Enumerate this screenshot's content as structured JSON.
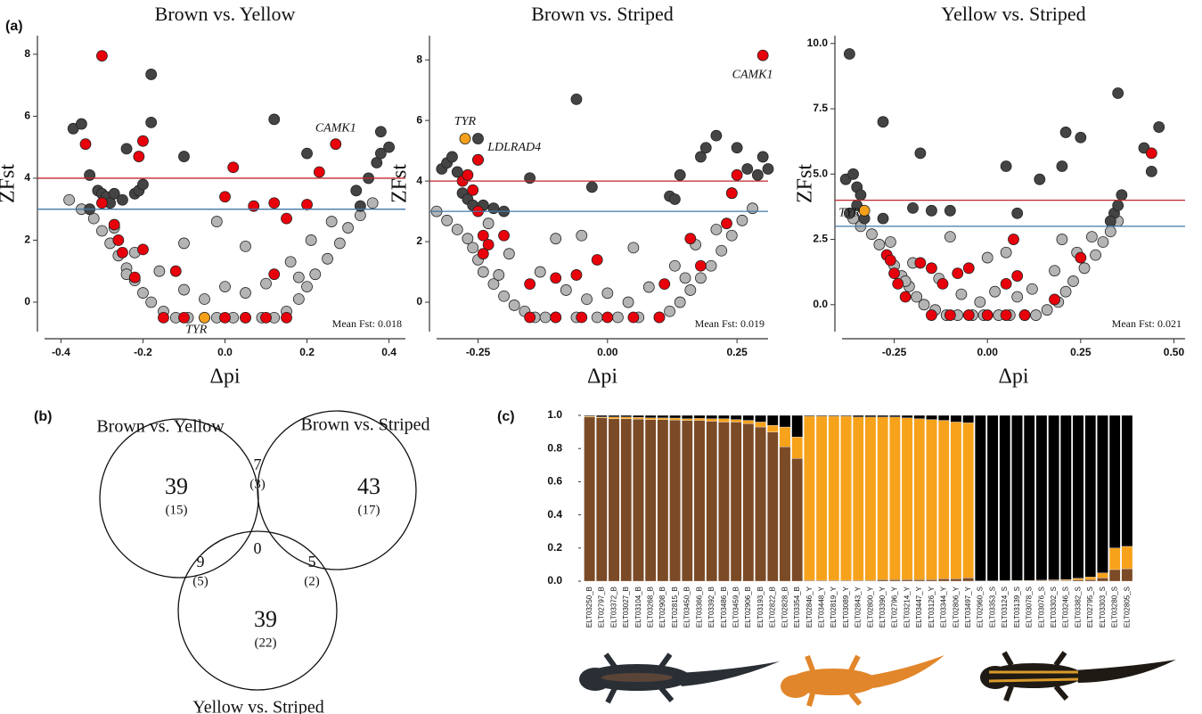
{
  "chart_data": [
    {
      "type": "scatter",
      "panel_label": "(a)",
      "title": "Brown vs. Yellow",
      "x_label": "Δpi",
      "y_label": "ZFst",
      "xlim": [
        -0.44,
        0.44
      ],
      "ylim": [
        -0.95,
        8.6
      ],
      "xticks": [
        -0.4,
        -0.2,
        {
          "value": 0,
          "label": "0.0"
        },
        0.2,
        0.4
      ],
      "yticks": [
        0,
        2,
        4,
        6,
        8
      ],
      "hlines": [
        {
          "value": 4,
          "color": "#c0272d"
        },
        {
          "value": 3,
          "color": "#3f78a8"
        }
      ],
      "series": [
        {
          "color": "#b4b4b4",
          "x": [
            -0.38,
            -0.35,
            -0.32,
            -0.3,
            -0.28,
            -0.26,
            -0.24,
            -0.22,
            -0.2,
            -0.18,
            -0.15,
            -0.12,
            -0.09,
            -0.05,
            -0.02,
            0.02,
            0.05,
            0.09,
            0.12,
            0.15,
            0.18,
            0.2,
            0.22,
            0.25,
            0.28,
            0.3,
            0.33,
            0.36,
            -0.27,
            -0.22,
            -0.16,
            -0.1,
            -0.05,
            0.0,
            0.05,
            0.1,
            0.16,
            0.21,
            0.26,
            -0.1,
            0.05,
            -0.02,
            0.18,
            -0.24
          ],
          "values": [
            3.3,
            3.0,
            2.7,
            2.3,
            1.9,
            1.5,
            1.1,
            0.7,
            0.3,
            0.0,
            -0.3,
            -0.5,
            -0.5,
            -0.5,
            -0.5,
            -0.5,
            -0.5,
            -0.5,
            -0.5,
            -0.3,
            0.1,
            0.5,
            0.9,
            1.4,
            1.9,
            2.4,
            2.8,
            3.2,
            2.4,
            1.6,
            1.0,
            0.4,
            0.1,
            0.5,
            0.3,
            0.6,
            1.3,
            2.0,
            2.6,
            1.9,
            1.8,
            2.6,
            0.8,
            0.9
          ]
        },
        {
          "color": "#444444",
          "x": [
            -0.37,
            -0.35,
            -0.33,
            -0.31,
            -0.3,
            -0.29,
            -0.28,
            -0.27,
            -0.25,
            -0.22,
            -0.21,
            -0.2,
            -0.18,
            -0.18,
            -0.24,
            -0.1,
            0.12,
            0.2,
            0.32,
            0.35,
            0.37,
            0.38,
            0.38,
            0.4,
            0.33,
            -0.33
          ],
          "values": [
            5.6,
            5.75,
            4.1,
            3.6,
            3.5,
            3.4,
            3.2,
            3.5,
            3.3,
            3.5,
            3.6,
            3.8,
            7.35,
            5.8,
            4.95,
            4.7,
            5.9,
            4.8,
            3.6,
            4.0,
            4.5,
            4.8,
            5.5,
            5.0,
            3.1,
            3.0
          ]
        },
        {
          "color": "#e8000b",
          "x": [
            -0.3,
            -0.34,
            -0.21,
            -0.2,
            0.02,
            0.0,
            0.07,
            0.12,
            0.2,
            0.23,
            0.27,
            0.15,
            -0.27,
            -0.26,
            -0.25,
            -0.22,
            -0.2,
            -0.12,
            0.12,
            -0.15,
            -0.1,
            0.0,
            0.05,
            0.1,
            0.15,
            -0.3
          ],
          "values": [
            7.95,
            5.1,
            4.7,
            5.2,
            4.35,
            3.4,
            3.1,
            3.2,
            3.15,
            4.2,
            5.1,
            2.7,
            2.5,
            2.0,
            1.6,
            0.8,
            1.7,
            1.0,
            0.9,
            -0.5,
            -0.5,
            -0.5,
            -0.5,
            -0.5,
            -0.5,
            3.2
          ]
        },
        {
          "color": "#f5a01a",
          "x": [
            -0.05
          ],
          "values": [
            -0.5
          ]
        }
      ],
      "annotations": [
        {
          "text": "CAMK1",
          "x": 0.27,
          "y": 5.6
        },
        {
          "text": "TYR",
          "x": -0.07,
          "y": -0.9
        }
      ],
      "note": "Mean Fst: 0.018"
    },
    {
      "type": "scatter",
      "title": "Brown vs. Striped",
      "x_label": "Δpi",
      "y_label": "ZFst",
      "xlim": [
        -0.33,
        0.31
      ],
      "ylim": [
        -0.97,
        8.8
      ],
      "xticks": [
        -0.25,
        {
          "value": 0,
          "label": "0.00"
        },
        0.25
      ],
      "yticks": [
        0,
        2,
        4,
        6,
        8
      ],
      "hlines": [
        {
          "value": 4,
          "color": "#c0272d"
        },
        {
          "value": 3,
          "color": "#3f78a8"
        }
      ],
      "series": [
        {
          "color": "#b4b4b4",
          "x": [
            -0.33,
            -0.31,
            -0.29,
            -0.27,
            -0.26,
            -0.25,
            -0.24,
            -0.22,
            -0.2,
            -0.18,
            -0.16,
            -0.14,
            -0.12,
            -0.1,
            -0.06,
            -0.02,
            0.02,
            0.06,
            0.1,
            0.12,
            0.14,
            0.16,
            0.18,
            0.2,
            0.22,
            0.24,
            0.26,
            0.28,
            -0.23,
            -0.19,
            -0.13,
            -0.08,
            -0.04,
            0.0,
            0.04,
            0.08,
            0.13,
            0.17,
            0.21,
            -0.1,
            0.05,
            -0.05,
            0.15,
            -0.21
          ],
          "values": [
            3.0,
            2.7,
            2.4,
            2.1,
            1.8,
            1.4,
            1.0,
            0.6,
            0.2,
            -0.1,
            -0.3,
            -0.5,
            -0.5,
            -0.5,
            -0.5,
            -0.5,
            -0.5,
            -0.5,
            -0.5,
            -0.3,
            0.0,
            0.4,
            0.8,
            1.2,
            1.7,
            2.2,
            2.7,
            3.1,
            2.6,
            1.6,
            1.0,
            0.4,
            0.1,
            0.3,
            0.0,
            0.5,
            1.2,
            1.9,
            2.4,
            2.1,
            1.8,
            2.2,
            0.8,
            0.9
          ]
        },
        {
          "color": "#444444",
          "x": [
            -0.32,
            -0.31,
            -0.3,
            -0.29,
            -0.28,
            -0.27,
            -0.26,
            -0.24,
            -0.22,
            -0.2,
            -0.15,
            -0.06,
            -0.03,
            0.12,
            0.14,
            0.18,
            0.19,
            0.21,
            0.25,
            0.27,
            0.29,
            0.3,
            0.31,
            -0.25,
            -0.25,
            0.13,
            0.24
          ],
          "values": [
            4.4,
            4.6,
            4.8,
            4.3,
            3.6,
            3.4,
            3.2,
            3.2,
            3.1,
            3.0,
            4.1,
            6.7,
            3.8,
            3.5,
            4.2,
            4.8,
            5.1,
            5.5,
            5.1,
            4.4,
            4.2,
            4.8,
            4.4,
            5.4,
            4.7,
            3.4,
            3.6
          ]
        },
        {
          "color": "#e8000b",
          "x": [
            0.3,
            -0.25,
            -0.28,
            -0.27,
            -0.26,
            -0.25,
            -0.24,
            -0.23,
            -0.24,
            -0.2,
            -0.15,
            -0.1,
            -0.06,
            -0.02,
            0.11,
            0.16,
            0.18,
            0.23,
            0.25,
            0.24,
            -0.15,
            -0.1,
            -0.05,
            0.0,
            0.05,
            0.1
          ],
          "values": [
            8.15,
            4.7,
            4.0,
            4.2,
            3.7,
            3.0,
            2.2,
            1.9,
            1.6,
            2.2,
            0.6,
            0.8,
            0.9,
            1.4,
            0.6,
            2.1,
            1.2,
            2.6,
            4.2,
            3.6,
            -0.5,
            -0.5,
            -0.5,
            -0.5,
            -0.5,
            -0.5
          ]
        },
        {
          "color": "#f5a01a",
          "x": [
            -0.275
          ],
          "values": [
            5.4
          ]
        }
      ],
      "annotations": [
        {
          "text": "TYR",
          "x": -0.275,
          "y": 5.95
        },
        {
          "text": "LDLRAD4",
          "x": -0.18,
          "y": 5.1
        },
        {
          "text": "CAMK1",
          "x": 0.28,
          "y": 7.5
        }
      ],
      "note": "Mean Fst: 0.019"
    },
    {
      "type": "scatter",
      "title": "Yellow vs. Striped",
      "x_label": "Δpi",
      "y_label": "ZFst",
      "xlim": [
        -0.39,
        0.53
      ],
      "ylim": [
        -1.03,
        10.3
      ],
      "xticks": [
        -0.25,
        {
          "value": 0,
          "label": "0.00"
        },
        0.25,
        {
          "value": 0.5,
          "label": "0.50"
        }
      ],
      "yticks": [
        {
          "value": 0,
          "label": "0.0"
        },
        2.5,
        {
          "value": 5,
          "label": "5.0"
        },
        7.5,
        {
          "value": 10,
          "label": "10.0"
        }
      ],
      "hlines": [
        {
          "value": 4,
          "color": "#c0272d"
        },
        {
          "value": 3,
          "color": "#3f78a8"
        }
      ],
      "series": [
        {
          "color": "#b4b4b4",
          "x": [
            -0.36,
            -0.34,
            -0.31,
            -0.29,
            -0.27,
            -0.25,
            -0.23,
            -0.21,
            -0.19,
            -0.17,
            -0.14,
            -0.11,
            -0.08,
            -0.04,
            -0.01,
            0.03,
            0.06,
            0.1,
            0.13,
            0.16,
            0.19,
            0.21,
            0.23,
            0.26,
            0.29,
            0.31,
            0.33,
            0.35,
            -0.26,
            -0.2,
            -0.13,
            -0.07,
            -0.02,
            0.02,
            0.08,
            0.12,
            0.18,
            0.24,
            0.28,
            -0.1,
            0.05,
            0.0,
            0.2,
            -0.22
          ],
          "values": [
            3.3,
            3.0,
            2.7,
            2.3,
            1.9,
            1.5,
            1.1,
            0.7,
            0.3,
            0.0,
            -0.2,
            -0.4,
            -0.4,
            -0.4,
            -0.4,
            -0.4,
            -0.4,
            -0.4,
            -0.4,
            -0.2,
            0.1,
            0.5,
            0.9,
            1.4,
            1.9,
            2.4,
            2.8,
            3.2,
            2.4,
            1.6,
            1.0,
            0.4,
            0.1,
            0.5,
            0.3,
            0.6,
            1.3,
            2.0,
            2.6,
            2.6,
            2.0,
            1.8,
            2.5,
            0.9
          ]
        },
        {
          "color": "#444444",
          "x": [
            -0.37,
            -0.38,
            -0.36,
            -0.35,
            -0.34,
            -0.37,
            -0.35,
            -0.33,
            -0.28,
            -0.28,
            -0.2,
            -0.18,
            -0.15,
            -0.1,
            0.05,
            0.08,
            0.14,
            0.2,
            0.21,
            0.25,
            0.35,
            0.34,
            0.35,
            0.36,
            0.33,
            0.42,
            0.44,
            0.46
          ],
          "values": [
            9.6,
            4.8,
            5.0,
            4.5,
            4.2,
            3.5,
            3.8,
            3.3,
            7.0,
            3.3,
            3.7,
            5.8,
            3.6,
            3.6,
            5.3,
            3.5,
            4.8,
            5.3,
            6.6,
            6.4,
            8.1,
            3.5,
            3.8,
            4.2,
            3.2,
            6.0,
            5.1,
            6.8
          ]
        },
        {
          "color": "#e8000b",
          "x": [
            0.44,
            0.07,
            -0.27,
            -0.26,
            -0.25,
            -0.24,
            -0.22,
            -0.18,
            -0.15,
            -0.12,
            -0.08,
            -0.05,
            0.05,
            0.08,
            0.18,
            0.25,
            -0.15,
            -0.1,
            -0.05,
            0.0,
            0.05,
            0.1
          ],
          "values": [
            5.8,
            2.5,
            1.9,
            1.7,
            1.2,
            0.8,
            0.3,
            1.6,
            1.4,
            0.8,
            1.2,
            1.4,
            0.8,
            1.1,
            0.2,
            1.8,
            -0.4,
            -0.4,
            -0.4,
            -0.4,
            -0.4,
            -0.4
          ]
        },
        {
          "color": "#f5a01a",
          "x": [
            -0.33
          ],
          "values": [
            3.6
          ]
        }
      ],
      "annotations": [
        {
          "text": "TYR",
          "x": -0.37,
          "y": 3.5
        }
      ],
      "note": "Mean Fst: 0.021"
    },
    {
      "type": "venn",
      "panel_label": "(b)",
      "sets": [
        "Brown vs. Yellow",
        "Brown vs. Striped",
        "Yellow vs. Striped"
      ],
      "values": [
        39,
        43,
        39,
        7,
        9,
        5,
        0
      ],
      "subvalues": [
        15,
        17,
        22,
        3,
        5,
        2,
        null
      ],
      "subvalue_labels": [
        "(15)",
        "(17)",
        "(22)",
        "(3)",
        "(5)",
        "(2)",
        null
      ]
    },
    {
      "type": "bar",
      "stacked": true,
      "panel_label": "(c)",
      "categories": [
        "ELT03250_B",
        "ELT02797_B",
        "ELT03372_B",
        "ELT03027_B",
        "ELT03104_B",
        "ELT03268_B",
        "ELT02908_B",
        "ELT02815_B",
        "ELT03450_B",
        "ELT03366_B",
        "ELT03392_B",
        "ELT03486_B",
        "ELT03459_B",
        "ELT02906_B",
        "ELT03193_B",
        "ELT02822_B",
        "ELT02828_B",
        "ELT03354_B",
        "ELT02846_Y",
        "ELT03448_Y",
        "ELT02819_Y",
        "ELT03089_Y",
        "ELT02843_Y",
        "ELT02800_Y",
        "ELT03390_Y",
        "ELT02796_Y",
        "ELT03214_Y",
        "ELT03447_Y",
        "ELT03126_Y",
        "ELT03344_Y",
        "ELT02806_Y",
        "ELT03497_Y",
        "ELT02960_S",
        "ELT03353_S",
        "ELT03124_S",
        "ELT03139_S",
        "ELT03078_S",
        "ELT03076_S",
        "ELT03302_S",
        "ELT03246_S",
        "ELT03382_S",
        "ELT02795_S",
        "ELT03303_S",
        "ELT03280_S",
        "ELT02805_S"
      ],
      "series": [
        {
          "color": "#7b4a26",
          "values": [
            0.99,
            0.985,
            0.98,
            0.98,
            0.978,
            0.975,
            0.975,
            0.972,
            0.97,
            0.97,
            0.965,
            0.96,
            0.96,
            0.95,
            0.93,
            0.9,
            0.81,
            0.74,
            0.005,
            0.005,
            0.005,
            0.005,
            0.005,
            0.005,
            0.01,
            0.01,
            0.01,
            0.01,
            0.01,
            0.015,
            0.015,
            0.02,
            0.002,
            0.002,
            0.002,
            0.003,
            0.003,
            0.004,
            0.005,
            0.005,
            0.008,
            0.01,
            0.02,
            0.07,
            0.075
          ]
        },
        {
          "color": "#f7a21b",
          "values": [
            0.005,
            0.005,
            0.01,
            0.01,
            0.01,
            0.01,
            0.01,
            0.012,
            0.01,
            0.012,
            0.015,
            0.02,
            0.015,
            0.02,
            0.03,
            0.04,
            0.12,
            0.13,
            0.99,
            0.99,
            0.99,
            0.99,
            0.985,
            0.985,
            0.98,
            0.98,
            0.975,
            0.97,
            0.965,
            0.955,
            0.945,
            0.935,
            0.0,
            0.0,
            0.001,
            0.002,
            0.002,
            0.002,
            0.003,
            0.005,
            0.01,
            0.015,
            0.03,
            0.13,
            0.135
          ]
        },
        {
          "color": "#000000",
          "values": [
            0.005,
            0.01,
            0.01,
            0.01,
            0.012,
            0.015,
            0.015,
            0.016,
            0.02,
            0.018,
            0.02,
            0.02,
            0.025,
            0.03,
            0.04,
            0.06,
            0.07,
            0.13,
            0.005,
            0.005,
            0.005,
            0.005,
            0.01,
            0.01,
            0.01,
            0.01,
            0.015,
            0.02,
            0.025,
            0.03,
            0.04,
            0.045,
            0.998,
            0.998,
            0.997,
            0.995,
            0.995,
            0.994,
            0.992,
            0.99,
            0.982,
            0.975,
            0.95,
            0.8,
            0.79
          ]
        }
      ],
      "ylim": [
        0,
        1
      ],
      "yticks": [
        {
          "value": 0,
          "label": "0.0"
        },
        0.2,
        0.4,
        0.6,
        0.8,
        {
          "value": 1,
          "label": "1.0"
        }
      ]
    }
  ]
}
